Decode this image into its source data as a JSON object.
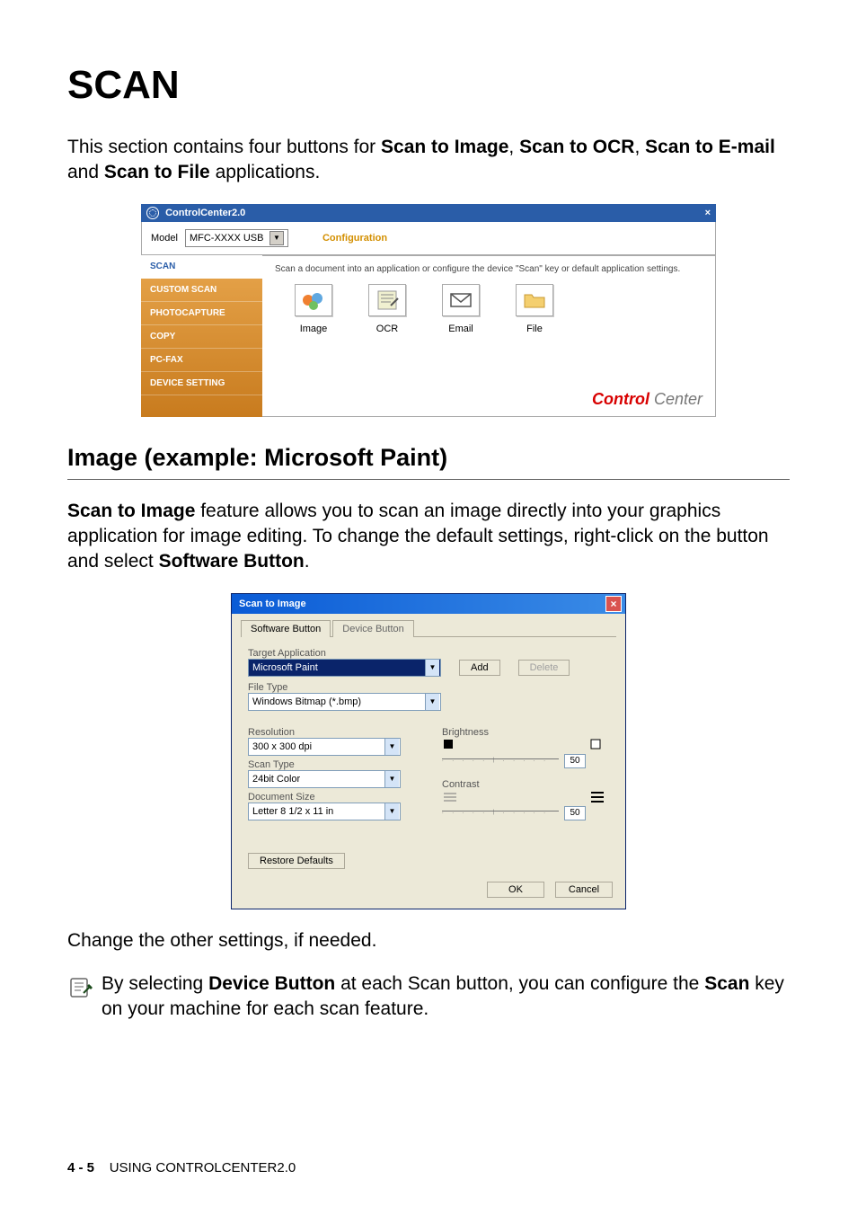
{
  "page": {
    "h1": "SCAN",
    "intro_runs": [
      {
        "text": "This section contains four buttons for ",
        "bold": false
      },
      {
        "text": "Scan to Image",
        "bold": true
      },
      {
        "text": ", ",
        "bold": false
      },
      {
        "text": "Scan to OCR",
        "bold": true
      },
      {
        "text": ", ",
        "bold": false
      },
      {
        "text": "Scan to E-mail",
        "bold": true
      },
      {
        "text": " and ",
        "bold": false
      },
      {
        "text": "Scan to File",
        "bold": true
      },
      {
        "text": " applications.",
        "bold": false
      }
    ],
    "h2": "Image (example: Microsoft Paint)",
    "para2_runs": [
      {
        "text": "Scan to Image",
        "bold": true
      },
      {
        "text": " feature allows you to scan an image directly into your graphics application for image editing. To change the default settings, right-click on the button and select ",
        "bold": false
      },
      {
        "text": "Software Button",
        "bold": true
      },
      {
        "text": ".",
        "bold": false
      }
    ],
    "para3": "Change the other settings, if needed.",
    "note_runs": [
      {
        "text": "By selecting ",
        "bold": false
      },
      {
        "text": "Device Button",
        "bold": true
      },
      {
        "text": " at each Scan button, you can configure the ",
        "bold": false
      },
      {
        "text": "Scan",
        "bold": true
      },
      {
        "text": " key on your machine for each scan feature.",
        "bold": false
      }
    ],
    "footer_page": "4 - 5",
    "footer_section": "USING CONTROLCENTER2.0"
  },
  "controlcenter": {
    "title": "ControlCenter2.0",
    "close_glyph": "×",
    "model_label": "Model",
    "model_value": "MFC-XXXX USB",
    "config_label": "Configuration",
    "description": "Scan a document into an application or configure the device \"Scan\" key or default application settings.",
    "sidebar": [
      {
        "label": "SCAN",
        "active": true
      },
      {
        "label": "CUSTOM SCAN",
        "active": false
      },
      {
        "label": "PHOTOCAPTURE",
        "active": false
      },
      {
        "label": "COPY",
        "active": false
      },
      {
        "label": "PC-FAX",
        "active": false
      },
      {
        "label": "DEVICE SETTING",
        "active": false
      }
    ],
    "icons": [
      {
        "name": "image-icon",
        "label": "Image",
        "svg": "image"
      },
      {
        "name": "ocr-icon",
        "label": "OCR",
        "svg": "ocr"
      },
      {
        "name": "email-icon",
        "label": "Email",
        "svg": "email"
      },
      {
        "name": "file-icon",
        "label": "File",
        "svg": "file"
      }
    ],
    "brand_red": "Control",
    "brand_grey": " Center",
    "colors": {
      "titlebar_bg": "#2a5da8",
      "sidebar_grad_top": "#e8a64d",
      "sidebar_grad_bottom": "#c87b1e",
      "active_text": "#2a5da8",
      "config_text": "#d38f00",
      "brand_red": "#d80000",
      "brand_grey": "#777777"
    }
  },
  "scan_to_image": {
    "title": "Scan to Image",
    "tabs": [
      {
        "label": "Software Button",
        "active": true
      },
      {
        "label": "Device Button",
        "active": false
      }
    ],
    "target_app": {
      "label": "Target Application",
      "value": "Microsoft Paint",
      "add_btn": "Add",
      "delete_btn": "Delete"
    },
    "file_type": {
      "label": "File Type",
      "value": "Windows Bitmap (*.bmp)"
    },
    "resolution": {
      "label": "Resolution",
      "value": "300 x 300 dpi"
    },
    "scan_type": {
      "label": "Scan Type",
      "value": "24bit Color"
    },
    "document_size": {
      "label": "Document Size",
      "value": "Letter 8 1/2 x 11 in"
    },
    "brightness": {
      "label": "Brightness",
      "value": "50"
    },
    "contrast": {
      "label": "Contrast",
      "value": "50"
    },
    "restore_btn": "Restore Defaults",
    "ok_btn": "OK",
    "cancel_btn": "Cancel",
    "colors": {
      "titlebar_grad_left": "#0a5bd6",
      "titlebar_grad_right": "#3a8be6",
      "panel_bg": "#ece9d8",
      "field_border": "#7f9db9",
      "highlight_bg": "#0a246a",
      "closebox_bg": "#d9534f"
    }
  }
}
